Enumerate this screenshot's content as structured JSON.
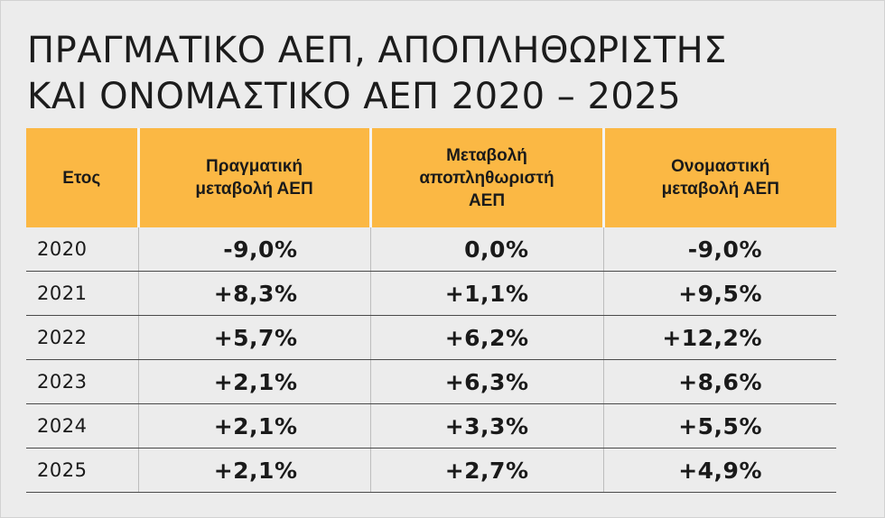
{
  "title": {
    "line1": "ΠΡΑΓΜΑΤΙΚΟ ΑΕΠ, ΑΠΟΠΛΗΘΩΡΙΣΤΗΣ",
    "line2": "ΚΑΙ ΟΝΟΜΑΣΤΙΚΟ ΑΕΠ 2020 – 2025"
  },
  "colors": {
    "header_bg": "#fbb844",
    "page_bg": "#ececec",
    "text": "#1a1a1a"
  },
  "chart_data": {
    "type": "table",
    "title": "ΠΡΑΓΜΑΤΙΚΟ ΑΕΠ, ΑΠΟΠΛΗΘΩΡΙΣΤΗΣ ΚΑΙ ΟΝΟΜΑΣΤΙΚΟ ΑΕΠ 2020 – 2025",
    "columns": [
      "Ετος",
      "Πραγματική μεταβολή ΑΕΠ",
      "Μεταβολή αποπληθωριστή ΑΕΠ",
      "Ονομαστική μεταβολή ΑΕΠ"
    ],
    "header_lines": [
      [
        "Ετος"
      ],
      [
        "Πραγματική",
        "μεταβολή ΑΕΠ"
      ],
      [
        "Μεταβολή",
        "αποπληθωριστή",
        "ΑΕΠ"
      ],
      [
        "Ονομαστική",
        "μεταβολή ΑΕΠ"
      ]
    ],
    "rows": [
      [
        "2020",
        "-9,0%",
        "0,0%",
        "-9,0%"
      ],
      [
        "2021",
        "+8,3%",
        "+1,1%",
        "+9,5%"
      ],
      [
        "2022",
        "+5,7%",
        "+6,2%",
        "+12,2%"
      ],
      [
        "2023",
        "+2,1%",
        "+6,3%",
        "+8,6%"
      ],
      [
        "2024",
        "+2,1%",
        "+3,3%",
        "+5,5%"
      ],
      [
        "2025",
        "+2,1%",
        "+2,7%",
        "+4,9%"
      ]
    ],
    "x": [
      2020,
      2021,
      2022,
      2023,
      2024,
      2025
    ],
    "series": [
      {
        "name": "Πραγματική μεταβολή ΑΕΠ",
        "values": [
          -9.0,
          8.3,
          5.7,
          2.1,
          2.1,
          2.1
        ]
      },
      {
        "name": "Μεταβολή αποπληθωριστή ΑΕΠ",
        "values": [
          0.0,
          1.1,
          6.2,
          6.3,
          3.3,
          2.7
        ]
      },
      {
        "name": "Ονομαστική μεταβολή ΑΕΠ",
        "values": [
          -9.0,
          9.5,
          12.2,
          8.6,
          5.5,
          4.9
        ]
      }
    ]
  }
}
